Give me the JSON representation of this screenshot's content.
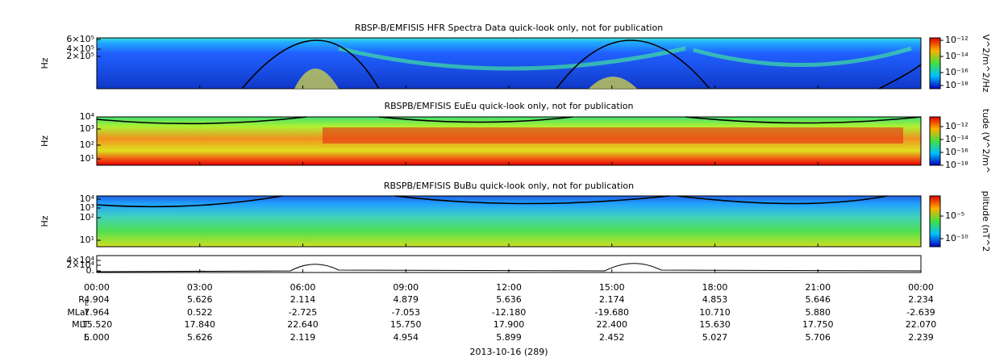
{
  "panels": [
    {
      "title": "RBSP-B/EMFISIS  HFR Spectra Data quick-look only, not for publication",
      "y_label": "Hz",
      "y_ticks": [
        "6×10⁵",
        "4×10⁵",
        "2×10⁵"
      ],
      "colorbar_ticks": [
        "10⁻¹²",
        "10⁻¹⁴",
        "10⁻¹⁶",
        "10⁻¹⁸"
      ],
      "colorbar_label": "V^2/m^2/Hz"
    },
    {
      "title": "RBSPB/EMFISIS  EuEu quick-look only, not for publication",
      "y_label": "Hz",
      "y_ticks": [
        "10⁴",
        "10³",
        "10²",
        "10¹"
      ],
      "colorbar_ticks": [
        "10⁻¹²",
        "10⁻¹⁴",
        "10⁻¹⁶",
        "10⁻¹⁸"
      ],
      "colorbar_label": "tude (V^2/m^"
    },
    {
      "title": "RBSPB/EMFISIS  BuBu quick-look only, not for publication",
      "y_label": "Hz",
      "y_ticks": [
        "10⁴",
        "10³",
        "10²",
        "10¹"
      ],
      "colorbar_ticks": [
        "10⁻⁵",
        "10⁻¹⁰"
      ],
      "colorbar_label": "plitude (nT^2"
    },
    {
      "y_ticks": [
        "4×10⁴",
        "2×10⁴",
        "0."
      ]
    }
  ],
  "time_ticks": [
    "00:00",
    "03:00",
    "06:00",
    "09:00",
    "12:00",
    "15:00",
    "18:00",
    "21:00",
    "00:00"
  ],
  "ephemeris": {
    "rows": [
      {
        "label": "R",
        "label_sub": "E",
        "values": [
          "4.904",
          "5.626",
          "2.114",
          "4.879",
          "5.636",
          "2.174",
          "4.853",
          "5.646",
          "2.234"
        ]
      },
      {
        "label": "MLat",
        "values": [
          "7.964",
          "0.522",
          "-2.725",
          "-7.053",
          "-12.180",
          "-19.680",
          "10.710",
          "5.880",
          "-2.639"
        ]
      },
      {
        "label": "MLT",
        "values": [
          "15.520",
          "17.840",
          "22.640",
          "15.750",
          "17.900",
          "22.400",
          "15.630",
          "17.750",
          "22.070"
        ]
      },
      {
        "label": "L",
        "values": [
          "5.000",
          "5.626",
          "2.119",
          "4.954",
          "5.899",
          "2.452",
          "5.027",
          "5.706",
          "2.239"
        ]
      }
    ]
  },
  "date": "2013-10-16 (289)"
}
